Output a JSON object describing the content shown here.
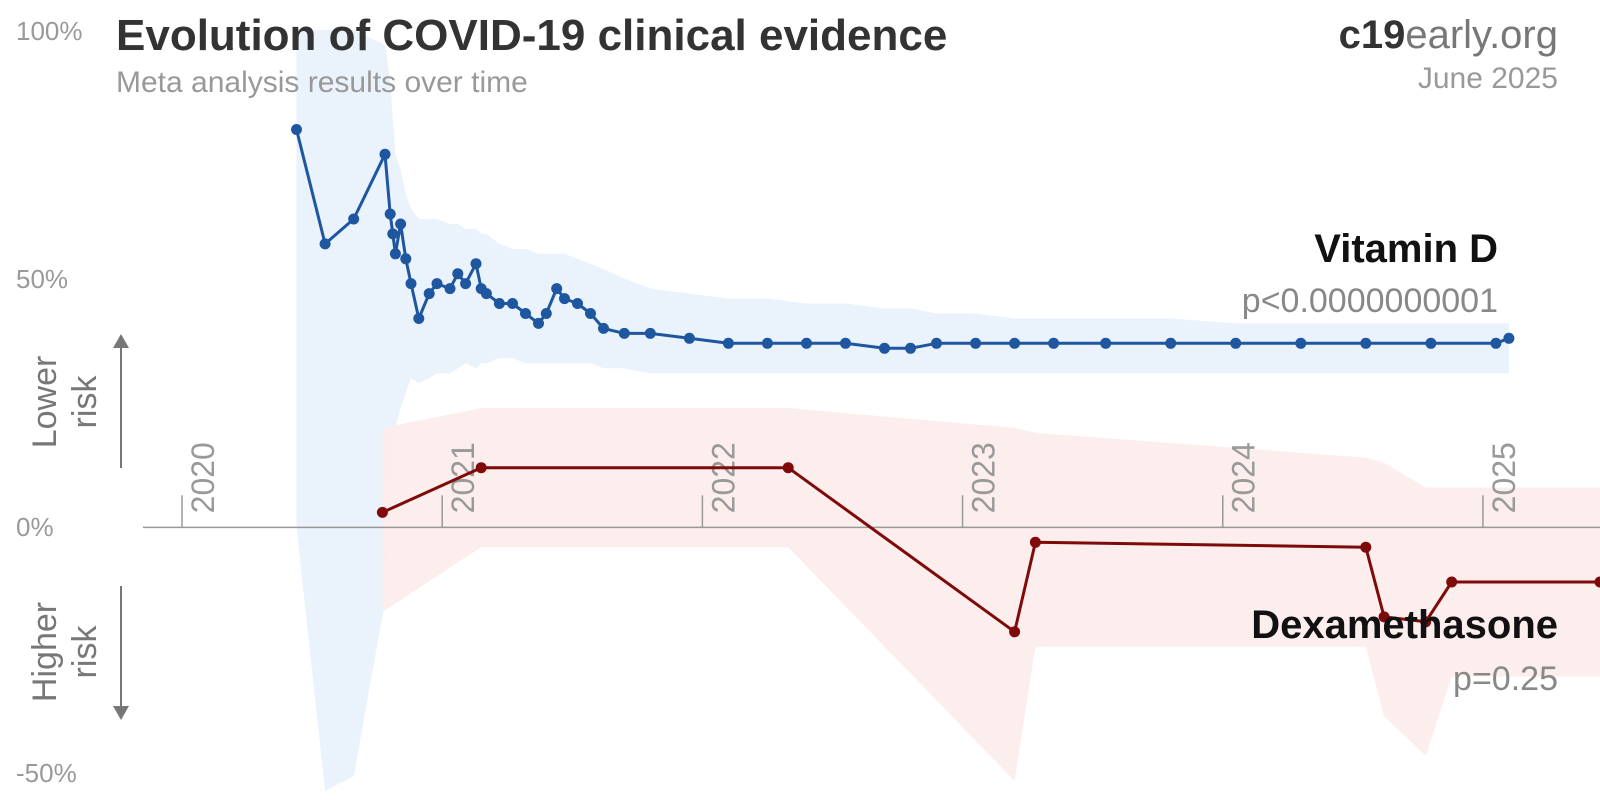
{
  "chart_data": {
    "type": "line",
    "title": "Evolution of COVID-19 clinical evidence",
    "subtitle": "Meta analysis results over time",
    "brand": {
      "bold": "c19",
      "light": "early",
      "domain": ".org"
    },
    "date_label": "June 2025",
    "y_ticks": [
      "100%",
      "50%",
      "0%",
      "-50%"
    ],
    "x_ticks": [
      "2020",
      "2021",
      "2022",
      "2023",
      "2024",
      "2025"
    ],
    "ylim": [
      -50,
      100
    ],
    "xlim": [
      2019.85,
      2025.45
    ],
    "side_labels": {
      "lower": [
        "Lower",
        "risk"
      ],
      "higher": [
        "Higher",
        "risk"
      ]
    },
    "colors": {
      "vitd": "#1e56a0",
      "vitd_band": "#e6f0fc",
      "dex": "#7f0a0a",
      "dex_band": "#fdecec",
      "axis": "#999999"
    },
    "series": [
      {
        "name": "Vitamin D",
        "pvalue": "p<0.0000000001",
        "color": "#1e56a0",
        "x": [
          2020.44,
          2020.55,
          2020.66,
          2020.78,
          2020.8,
          2020.81,
          2020.82,
          2020.84,
          2020.86,
          2020.88,
          2020.91,
          2020.95,
          2020.98,
          2021.03,
          2021.06,
          2021.09,
          2021.13,
          2021.15,
          2021.17,
          2021.22,
          2021.27,
          2021.32,
          2021.37,
          2021.4,
          2021.44,
          2021.47,
          2021.52,
          2021.57,
          2021.62,
          2021.7,
          2021.8,
          2021.95,
          2022.1,
          2022.25,
          2022.4,
          2022.55,
          2022.7,
          2022.8,
          2022.9,
          2023.05,
          2023.2,
          2023.35,
          2023.55,
          2023.8,
          2024.05,
          2024.3,
          2024.55,
          2024.8,
          2025.05,
          2025.1
        ],
        "y": [
          80,
          57,
          62,
          75,
          63,
          59,
          55,
          61,
          54,
          49,
          42,
          47,
          49,
          48,
          51,
          49,
          53,
          48,
          47,
          45,
          45,
          43,
          41,
          43,
          48,
          46,
          45,
          43,
          40,
          39,
          39,
          38,
          37,
          37,
          37,
          37,
          36,
          36,
          37,
          37,
          37,
          37,
          37,
          37,
          37,
          37,
          37,
          37,
          37,
          38
        ],
        "band_upper": [
          100,
          100,
          100,
          97,
          90,
          82,
          75,
          72,
          67,
          64,
          62,
          62,
          62,
          61,
          61,
          60,
          60,
          59,
          59,
          57,
          56,
          56,
          55,
          55,
          55,
          55,
          54,
          53,
          52,
          50,
          48,
          47,
          46,
          46,
          45,
          45,
          44,
          44,
          43,
          43,
          42,
          42,
          42,
          42,
          41,
          41,
          41,
          41,
          41,
          41
        ],
        "band_lower": [
          0,
          -53,
          -50,
          -15,
          0,
          14,
          20,
          24,
          27,
          30,
          29,
          30,
          31,
          31,
          32,
          33,
          32,
          33,
          33,
          34,
          34,
          33,
          33,
          33,
          33,
          33,
          33,
          33,
          32,
          32,
          31,
          31,
          31,
          31,
          31,
          31,
          31,
          31,
          31,
          31,
          31,
          31,
          31,
          31,
          31,
          31,
          31,
          31,
          31,
          31
        ]
      },
      {
        "name": "Dexamethasone",
        "pvalue": "p=0.25",
        "color": "#7f0a0a",
        "x": [
          2020.77,
          2021.15,
          2022.33,
          2023.2,
          2023.28,
          2024.55,
          2024.62,
          2024.78,
          2024.88,
          2025.45
        ],
        "y": [
          3,
          12,
          12,
          -21,
          -3,
          -4,
          -18,
          -19,
          -11,
          -11
        ],
        "band_upper": [
          20,
          24,
          24,
          20,
          19,
          14,
          13,
          8,
          8,
          8
        ],
        "band_lower": [
          -17,
          -4,
          -4,
          -51,
          -24,
          -24,
          -38,
          -46,
          -30,
          -30
        ]
      }
    ]
  }
}
